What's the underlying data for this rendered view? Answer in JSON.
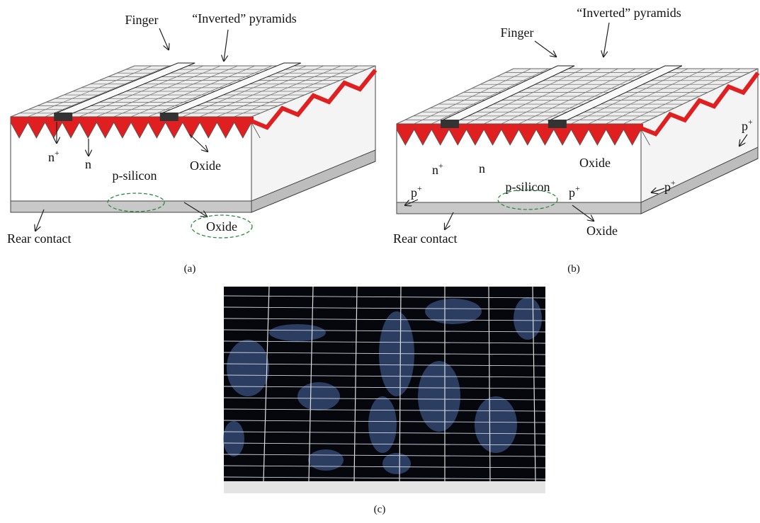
{
  "panels": [
    {
      "label": "(a)",
      "finger": "Finger",
      "pyramids": "“Inverted” pyramids",
      "n_plus": {
        "base": "n",
        "sup": "+"
      },
      "n": "n",
      "oxide_front": "Oxide",
      "p_silicon": "p-silicon",
      "oxide_rear": "Oxide",
      "rear_contact": "Rear contact"
    },
    {
      "label": "(b)",
      "pyramids": "“Inverted” pyramids",
      "finger": "Finger",
      "p_plus_side": {
        "base": "p",
        "sup": "+"
      },
      "n_plus": {
        "base": "n",
        "sup": "+"
      },
      "n": "n",
      "oxide_front": "Oxide",
      "p_plus_left": {
        "base": "p",
        "sup": "+"
      },
      "p_silicon": "p-silicon",
      "p_plus_center": {
        "base": "p",
        "sup": "+"
      },
      "p_plus_right": {
        "base": "p",
        "sup": "+"
      },
      "oxide_rear": "Oxide",
      "rear_contact": "Rear contact"
    },
    {
      "label": "(c)"
    }
  ]
}
